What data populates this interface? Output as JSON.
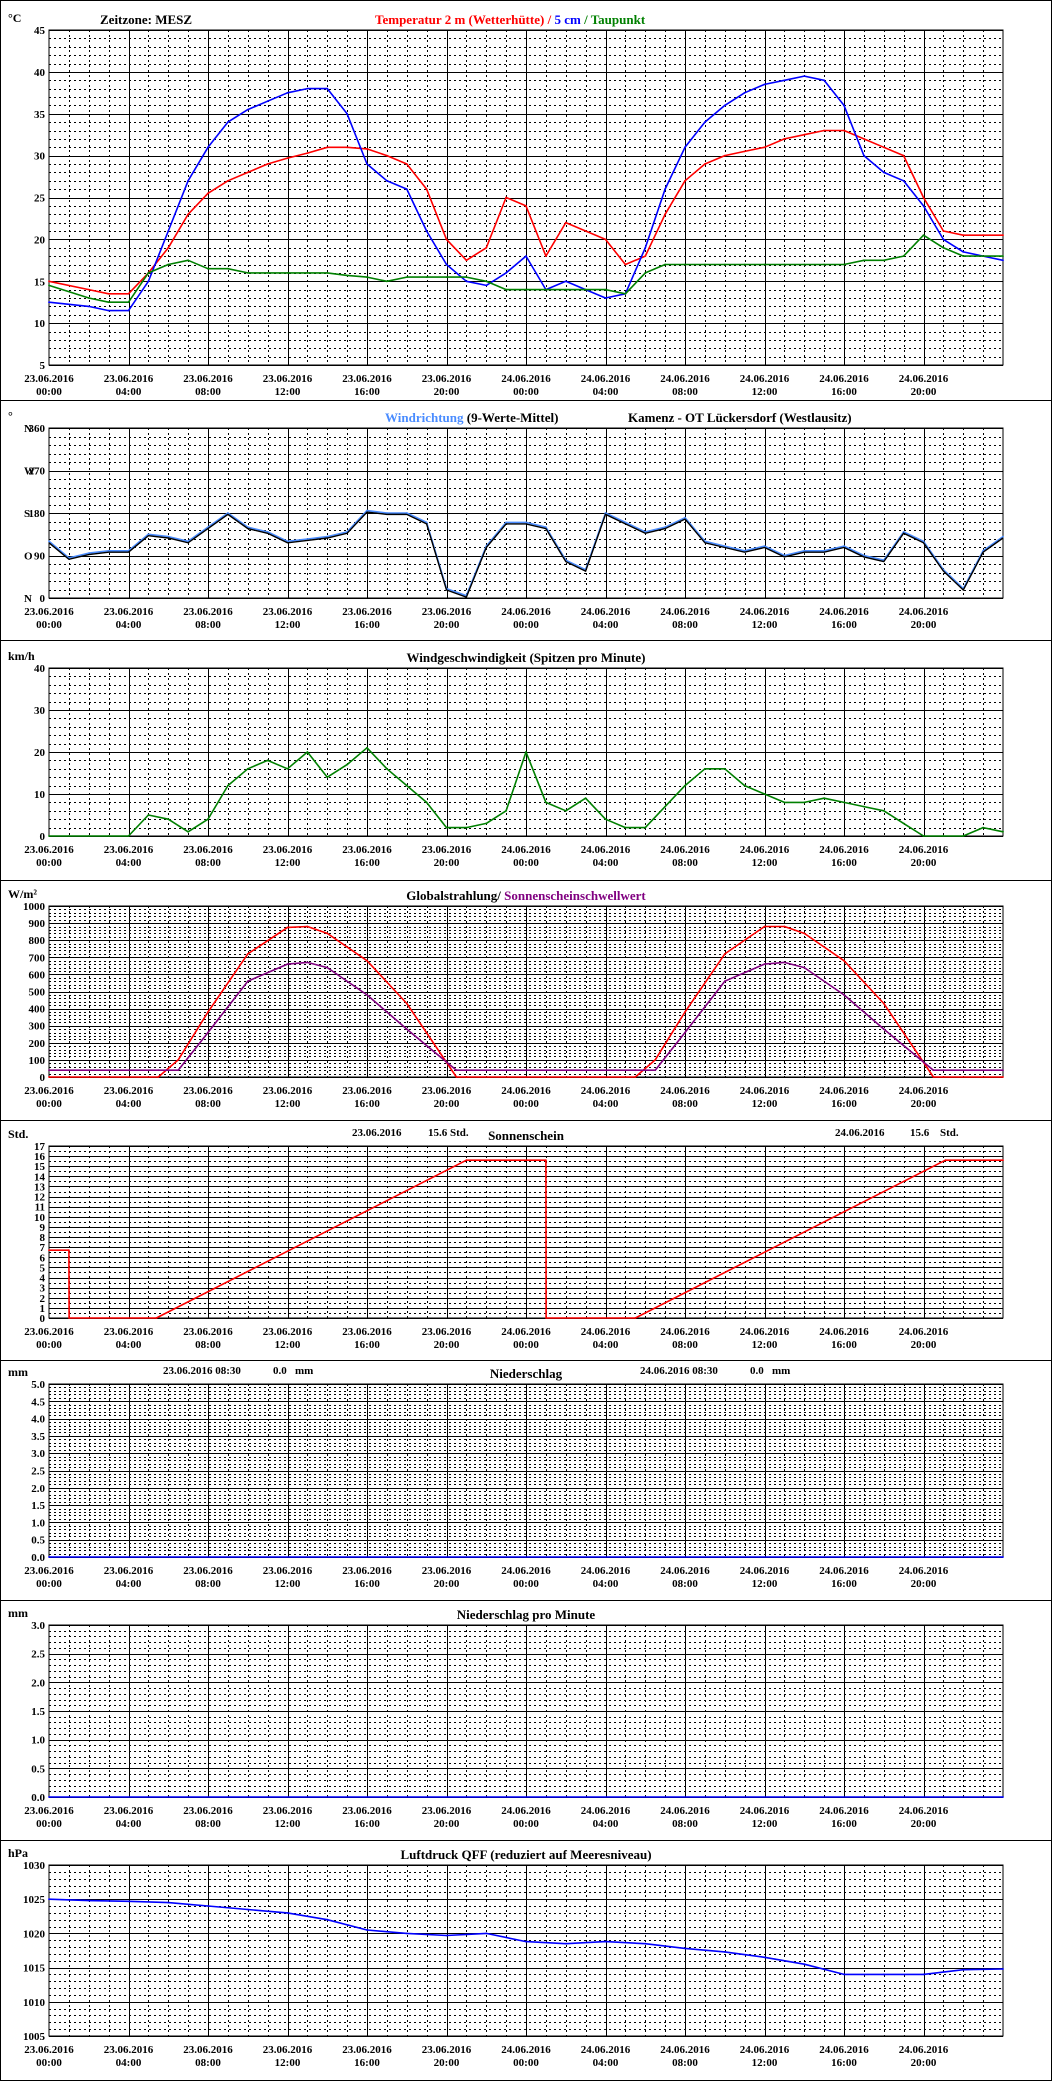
{
  "colors": {
    "temp": "#ff0000",
    "soil": "#0000ff",
    "dew": "#008000",
    "winddir": "#4a8cff",
    "winddir_avg": "#000000",
    "windspeed": "#008000",
    "radiation": "#ff0000",
    "threshold": "#800080",
    "sunshine": "#ff0000",
    "precip": "#0000ff",
    "pressure": "#0000ff"
  },
  "time_ticks": [
    {
      "date": "23.06.2016",
      "time": "00:00"
    },
    {
      "date": "23.06.2016",
      "time": "04:00"
    },
    {
      "date": "23.06.2016",
      "time": "08:00"
    },
    {
      "date": "23.06.2016",
      "time": "12:00"
    },
    {
      "date": "23.06.2016",
      "time": "16:00"
    },
    {
      "date": "23.06.2016",
      "time": "20:00"
    },
    {
      "date": "24.06.2016",
      "time": "00:00"
    },
    {
      "date": "24.06.2016",
      "time": "04:00"
    },
    {
      "date": "24.06.2016",
      "time": "08:00"
    },
    {
      "date": "24.06.2016",
      "time": "12:00"
    },
    {
      "date": "24.06.2016",
      "time": "16:00"
    },
    {
      "date": "24.06.2016",
      "time": "20:00"
    }
  ],
  "chart_data": [
    {
      "type": "line",
      "unit": "°C",
      "timezone_label": "Zeitzone: MESZ",
      "title_parts": [
        {
          "text": "Temperatur 2 m (Wetterhütte)",
          "color": "temp"
        },
        {
          "text": " / ",
          "color": "temp"
        },
        {
          "text": "5 cm",
          "color": "soil"
        },
        {
          "text": " / ",
          "color": "dew"
        },
        {
          "text": "Taupunkt",
          "color": "dew"
        }
      ],
      "ylim": [
        5,
        45
      ],
      "yticks": [
        5,
        10,
        15,
        20,
        25,
        30,
        35,
        40,
        45
      ],
      "x_hours": [
        0,
        2,
        3,
        4,
        5,
        6,
        7,
        8,
        9,
        10,
        11,
        12,
        13,
        14,
        15,
        16,
        17,
        18,
        19,
        20,
        21,
        22,
        23,
        24,
        25,
        26,
        27,
        28,
        29,
        30,
        31,
        32,
        33,
        34,
        35,
        36,
        37,
        38,
        39,
        40,
        41,
        42,
        43,
        44,
        45,
        46,
        47,
        48
      ],
      "series": [
        {
          "name": "Temperatur 2 m (Wetterhütte)",
          "color": "temp",
          "values": [
            15,
            14,
            13.5,
            13.5,
            16,
            19,
            23,
            25.5,
            27,
            28,
            29,
            29.7,
            30.3,
            31,
            31,
            30.8,
            30,
            29,
            26,
            20,
            17.5,
            19,
            25,
            24,
            18,
            22,
            21,
            20,
            17,
            18,
            23,
            27,
            29,
            30,
            30.5,
            31,
            32,
            32.5,
            33,
            33,
            32,
            31,
            30,
            25,
            21,
            20.5,
            20.5,
            20.5
          ]
        },
        {
          "name": "5 cm",
          "color": "soil",
          "values": [
            12.5,
            12,
            11.5,
            11.5,
            15,
            21,
            27,
            31,
            34,
            35.5,
            36.5,
            37.5,
            38,
            38,
            35,
            29,
            27,
            26,
            21,
            17,
            15,
            14.5,
            16,
            18,
            14,
            15,
            14,
            13,
            13.5,
            19,
            26,
            31,
            34,
            36,
            37.5,
            38.5,
            39,
            39.5,
            39,
            36,
            30,
            28,
            27,
            24,
            20,
            18.5,
            18,
            17.5
          ]
        },
        {
          "name": "Taupunkt",
          "color": "dew",
          "values": [
            14.5,
            13,
            12.5,
            12.5,
            16,
            17,
            17.5,
            16.5,
            16.5,
            16,
            16,
            16,
            16,
            16,
            15.7,
            15.5,
            15,
            15.5,
            15.5,
            15.5,
            15.5,
            15,
            14,
            14,
            14,
            14,
            14,
            14,
            13.5,
            16,
            17,
            17,
            17,
            17,
            17,
            17,
            17,
            17,
            17,
            17,
            17.5,
            17.5,
            18,
            20.5,
            19,
            18,
            18,
            18
          ]
        }
      ]
    },
    {
      "type": "line",
      "title": "Windrichtung",
      "title_suffix": " (9-Werte-Mittel)",
      "station": "Kamenz - OT Lückersdorf (Westlausitz)",
      "unit": "°",
      "y_direction_labels": [
        {
          "v": 360,
          "l": "N"
        },
        {
          "v": 270,
          "l": "W"
        },
        {
          "v": 180,
          "l": "S"
        },
        {
          "v": 90,
          "l": "O"
        },
        {
          "v": 0,
          "l": "N"
        }
      ],
      "ylim": [
        0,
        360
      ],
      "yticks": [
        0,
        90,
        180,
        270,
        360
      ],
      "x_hours": [
        0,
        1,
        2,
        3,
        4,
        5,
        6,
        7,
        8,
        9,
        10,
        11,
        12,
        13,
        14,
        15,
        16,
        17,
        18,
        19,
        20,
        21,
        22,
        23,
        24,
        25,
        26,
        27,
        28,
        29,
        30,
        31,
        32,
        33,
        34,
        35,
        36,
        37,
        38,
        39,
        40,
        41,
        42,
        43,
        44,
        45,
        46,
        47,
        48
      ],
      "series": [
        {
          "name": "Windrichtung",
          "color": "winddir",
          "values": [
            120,
            85,
            95,
            100,
            100,
            135,
            130,
            120,
            150,
            180,
            150,
            140,
            120,
            125,
            130,
            140,
            185,
            180,
            180,
            160,
            20,
            5,
            110,
            160,
            160,
            150,
            80,
            60,
            180,
            160,
            140,
            150,
            170,
            120,
            110,
            100,
            110,
            90,
            100,
            100,
            110,
            90,
            80,
            140,
            120,
            60,
            20,
            100,
            130
          ]
        }
      ]
    },
    {
      "type": "line",
      "unit": "km/h",
      "title": "Windgeschwindigkeit (Spitzen pro Minute)",
      "ylim": [
        0,
        40
      ],
      "yticks": [
        0,
        10,
        20,
        30,
        40
      ],
      "x_hours": [
        0,
        1,
        2,
        3,
        4,
        5,
        6,
        7,
        8,
        9,
        10,
        11,
        12,
        13,
        14,
        15,
        16,
        17,
        18,
        19,
        20,
        21,
        22,
        23,
        24,
        25,
        26,
        27,
        28,
        29,
        30,
        31,
        32,
        33,
        34,
        35,
        36,
        37,
        38,
        39,
        40,
        41,
        42,
        43,
        44,
        45,
        46,
        47,
        48
      ],
      "series": [
        {
          "name": "Windgeschwindigkeit",
          "color": "windspeed",
          "values": [
            0,
            0,
            0,
            0,
            0,
            5,
            4,
            1,
            4,
            12,
            16,
            18,
            16,
            20,
            14,
            17,
            21,
            16,
            12,
            8,
            2,
            2,
            3,
            6,
            20,
            8,
            6,
            9,
            4,
            2,
            2,
            7,
            12,
            16,
            16,
            12,
            10,
            8,
            8,
            9,
            8,
            7,
            6,
            3,
            0,
            0,
            0,
            2,
            1
          ]
        }
      ]
    },
    {
      "type": "line",
      "unit": "W/m²",
      "title": "Globalstrahlung/",
      "title2": " Sonnenscheinschwellwert",
      "ylim": [
        0,
        1000
      ],
      "yticks": [
        0,
        100,
        200,
        300,
        400,
        500,
        600,
        700,
        800,
        900,
        1000
      ],
      "x_hours": [
        0,
        5.5,
        6.5,
        8,
        10,
        12,
        13,
        14,
        16,
        18,
        20.5,
        21,
        24,
        29.5,
        30.5,
        32,
        34,
        36,
        37,
        38,
        40,
        42,
        44.5,
        45,
        48
      ],
      "series": [
        {
          "name": "Globalstrahlung",
          "color": "radiation",
          "values": [
            0,
            0,
            100,
            380,
            720,
            875,
            880,
            840,
            680,
            430,
            0,
            0,
            0,
            0,
            100,
            380,
            720,
            880,
            880,
            840,
            680,
            430,
            0,
            0,
            0
          ]
        },
        {
          "name": "Sonnenscheinschwellwert",
          "color": "threshold",
          "values": [
            40,
            40,
            40,
            260,
            560,
            660,
            670,
            640,
            480,
            280,
            40,
            40,
            40,
            40,
            40,
            260,
            560,
            660,
            670,
            640,
            480,
            280,
            40,
            40,
            40
          ]
        }
      ]
    },
    {
      "type": "line",
      "unit": "Std.",
      "title": "Sonnenschein",
      "annotations": [
        {
          "date": "23.06.2016",
          "value": "15.6",
          "unit": "Std."
        },
        {
          "date": "24.06.2016",
          "value": "15.6",
          "unit": "Std."
        }
      ],
      "ylim": [
        0,
        17
      ],
      "yticks": [
        0,
        1,
        2,
        3,
        4,
        5,
        6,
        7,
        8,
        9,
        10,
        11,
        12,
        13,
        14,
        15,
        16,
        17
      ],
      "x_hours": [
        0,
        1,
        1.01,
        5.4,
        21,
        25,
        25.01,
        29.5,
        45.1,
        48
      ],
      "series": [
        {
          "name": "Sonnenschein",
          "color": "sunshine",
          "values": [
            6.7,
            6.7,
            0,
            0,
            15.6,
            15.6,
            0,
            0,
            15.6,
            15.6
          ]
        }
      ]
    },
    {
      "type": "line",
      "unit": "mm",
      "title": "Niederschlag",
      "annotations": [
        {
          "date": "23.06.2016 08:30",
          "value": "0.0",
          "unit": "mm"
        },
        {
          "date": "24.06.2016 08:30",
          "value": "0.0",
          "unit": "mm"
        }
      ],
      "ylim": [
        0,
        5
      ],
      "yticks": [
        "0.0",
        "0.5",
        "1.0",
        "1.5",
        "2.0",
        "2.5",
        "3.0",
        "3.5",
        "4.0",
        "4.5",
        "5.0"
      ],
      "x_hours": [
        0,
        48
      ],
      "series": [
        {
          "name": "Niederschlag",
          "color": "precip",
          "values": [
            0,
            0
          ]
        }
      ]
    },
    {
      "type": "line",
      "unit": "mm",
      "title": "Niederschlag pro Minute",
      "ylim": [
        0,
        3
      ],
      "yticks": [
        "0.0",
        "0.5",
        "1.0",
        "1.5",
        "2.0",
        "2.5",
        "3.0"
      ],
      "x_hours": [
        0,
        48
      ],
      "series": [
        {
          "name": "Niederschlag pro Minute",
          "color": "precip",
          "values": [
            0,
            0
          ]
        }
      ]
    },
    {
      "type": "line",
      "unit": "hPa",
      "title": "Luftdruck QFF (reduziert auf Meeresniveau)",
      "ylim": [
        1005,
        1030
      ],
      "yticks": [
        1005,
        1010,
        1015,
        1020,
        1025,
        1030
      ],
      "x_hours": [
        0,
        2,
        4,
        6,
        8,
        10,
        12,
        14,
        16,
        18,
        20,
        22,
        24,
        26,
        28,
        30,
        32,
        34,
        36,
        38,
        40,
        42,
        44,
        46,
        48
      ],
      "series": [
        {
          "name": "Luftdruck",
          "color": "pressure",
          "values": [
            1025,
            1024.8,
            1024.7,
            1024.5,
            1024,
            1023.5,
            1023,
            1022,
            1020.5,
            1020,
            1019.7,
            1020,
            1018.8,
            1018.5,
            1018.8,
            1018.5,
            1017.8,
            1017.3,
            1016.5,
            1015.5,
            1014,
            1014,
            1014,
            1014.7,
            1014.8
          ]
        }
      ]
    }
  ]
}
